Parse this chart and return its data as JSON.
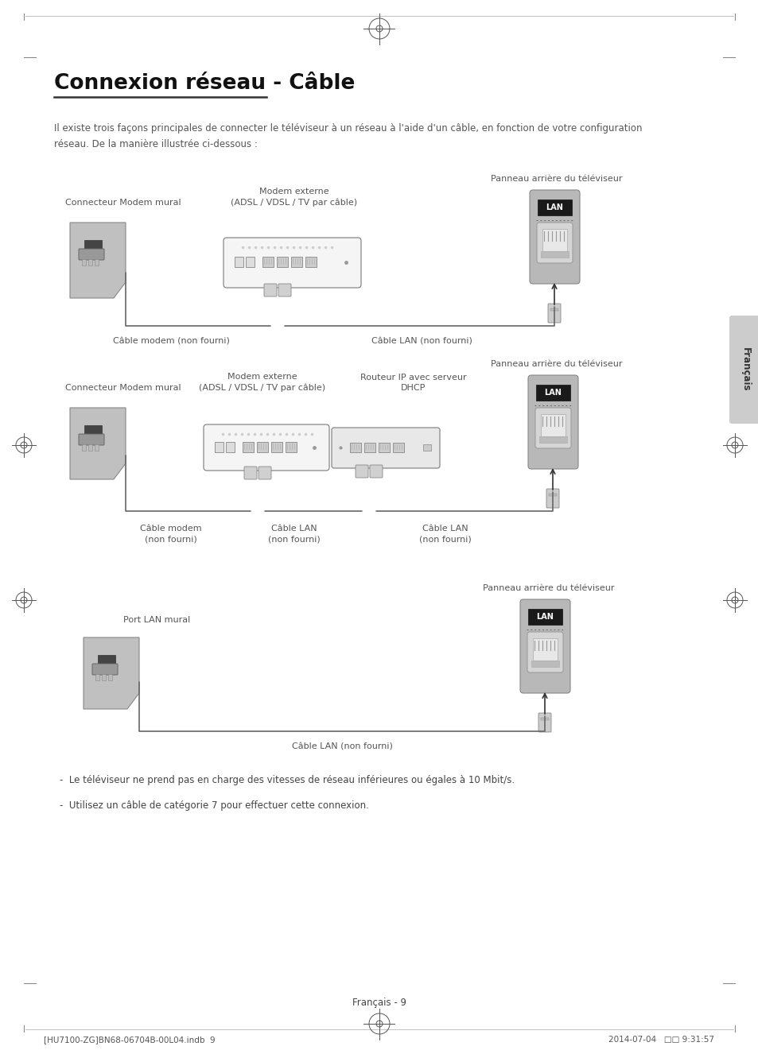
{
  "bg_color": "#ffffff",
  "title": "Connexion réseau - Câble",
  "subtitle_line1": "Il existe trois façons principales de connecter le téléviseur à un réseau à l'aide d'un câble, en fonction de votre configuration",
  "subtitle_line2": "réseau. De la manière illustrée ci-dessous :",
  "footer_center": "Français - 9",
  "footer_left": "[HU7100-ZG]BN68-06704B-00L04.indb  9",
  "footer_right": "2014-07-04   □□ 9:31:57",
  "sidebar_text": "Français",
  "diagram1": {
    "label_wall": "Connecteur Modem mural",
    "label_modem": "Modem externe\n(ADSL / VDSL / TV par câble)",
    "label_panel": "Panneau arrière du téléviseur",
    "label_cable1": "Câble modem (non fourni)",
    "label_cable2": "Câble LAN (non fourni)"
  },
  "diagram2": {
    "label_wall": "Connecteur Modem mural",
    "label_modem": "Modem externe\n(ADSL / VDSL / TV par câble)",
    "label_router": "Routeur IP avec serveur\nDHCP",
    "label_panel": "Panneau arrière du téléviseur",
    "label_cable1": "Câble modem\n(non fourni)",
    "label_cable2": "Câble LAN\n(non fourni)",
    "label_cable3": "Câble LAN\n(non fourni)"
  },
  "diagram3": {
    "label_wall": "Port LAN mural",
    "label_panel": "Panneau arrière du téléviseur",
    "label_cable": "Câble LAN (non fourni)"
  },
  "notes": [
    "Le téléviseur ne prend pas en charge des vitesses de réseau inférieures ou égales à 10 Mbit/s.",
    "Utilisez un câble de catégorie 7 pour effectuer cette connexion."
  ],
  "crosshair_color": "#555555",
  "line_color": "#666666",
  "text_color": "#333333",
  "label_color": "#555555"
}
